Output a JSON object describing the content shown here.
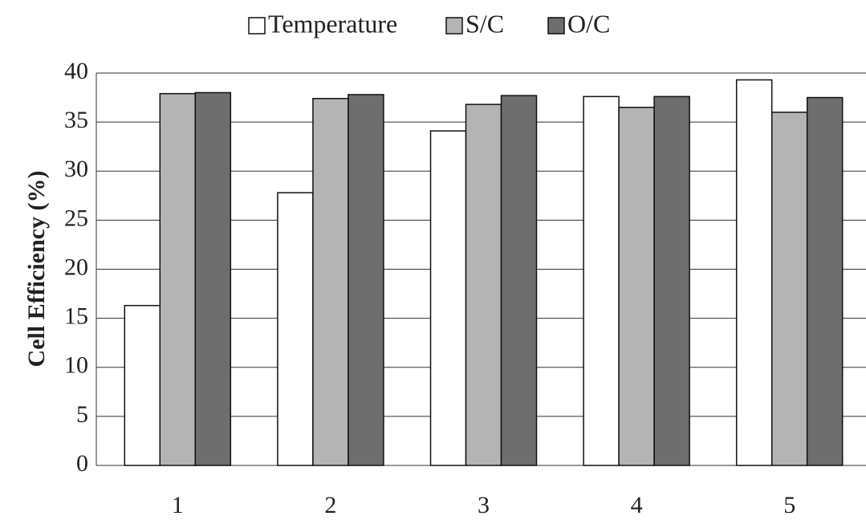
{
  "chart_data": {
    "type": "bar",
    "y_label": "Cell Efficiency (%)",
    "categories": [
      "1",
      "2",
      "3",
      "4",
      "5"
    ],
    "series": [
      {
        "name": "Temperature",
        "color": "#ffffff",
        "values": [
          16.3,
          27.8,
          34.1,
          37.6,
          39.3
        ]
      },
      {
        "name": "S/C",
        "color": "#b4b4b4",
        "values": [
          37.9,
          37.4,
          36.8,
          36.5,
          36.0
        ]
      },
      {
        "name": "O/C",
        "color": "#6e6e6e",
        "values": [
          38.0,
          37.8,
          37.7,
          37.6,
          37.5
        ]
      }
    ],
    "ylim": [
      0,
      40
    ],
    "yticks": [
      0,
      5,
      10,
      15,
      20,
      25,
      30,
      35,
      40
    ],
    "grid": true,
    "legend": "top"
  }
}
